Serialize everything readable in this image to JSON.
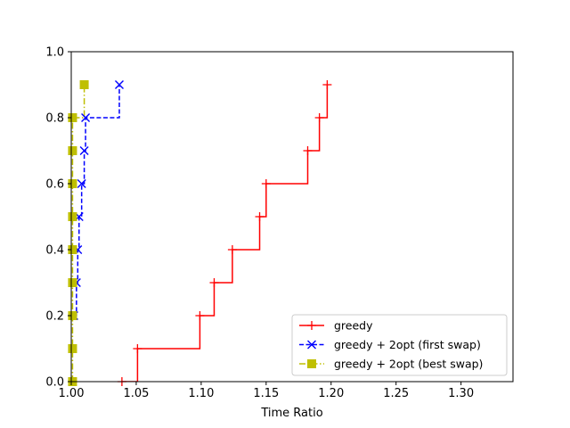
{
  "chart_data": {
    "type": "line",
    "drawstyle": "steps-post",
    "title": "",
    "xlabel": "Time Ratio",
    "ylabel": "",
    "xlim": [
      1.0,
      1.34
    ],
    "ylim": [
      0.0,
      1.0
    ],
    "xticks": [
      "1.00",
      "1.05",
      "1.10",
      "1.15",
      "1.20",
      "1.25",
      "1.30"
    ],
    "yticks": [
      "0.0",
      "0.2",
      "0.4",
      "0.6",
      "0.8",
      "1.0"
    ],
    "grid": false,
    "legend_position": "lower-right",
    "series": [
      {
        "name": "greedy",
        "color": "#ff0000",
        "marker": "plus",
        "linestyle": "solid",
        "x": [
          1.039,
          1.051,
          1.099,
          1.11,
          1.124,
          1.145,
          1.15,
          1.182,
          1.191,
          1.197
        ],
        "y": [
          0.0,
          0.1,
          0.2,
          0.3,
          0.4,
          0.5,
          0.6,
          0.7,
          0.8,
          0.9
        ]
      },
      {
        "name": "greedy + 2opt (first swap)",
        "color": "#0000ff",
        "marker": "x",
        "linestyle": "dashed",
        "x": [
          1.002,
          1.004,
          1.005,
          1.006,
          1.008,
          1.01,
          1.011,
          1.037
        ],
        "y": [
          0.2,
          0.3,
          0.4,
          0.5,
          0.6,
          0.7,
          0.8,
          0.9
        ]
      },
      {
        "name": "greedy + 2opt (best swap)",
        "color": "#bfbf00",
        "marker": "square",
        "linestyle": "dashdot",
        "x": [
          1.001,
          1.001,
          1.001,
          1.001,
          1.001,
          1.001,
          1.001,
          1.001,
          1.001,
          1.01
        ],
        "y": [
          0.0,
          0.1,
          0.2,
          0.3,
          0.4,
          0.5,
          0.6,
          0.7,
          0.8,
          0.9
        ]
      }
    ]
  }
}
